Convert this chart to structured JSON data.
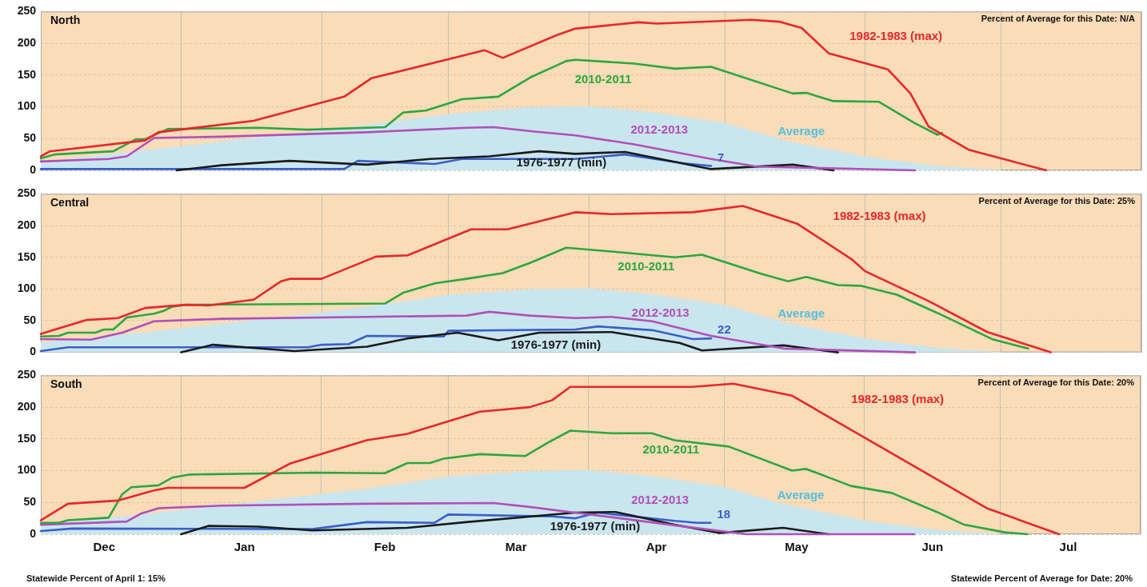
{
  "chart_data": [
    {
      "type": "line",
      "title": "North",
      "annotations": [
        "Percent of Average for this Date: N/A"
      ],
      "xlim": [
        "2013-12-01",
        "2014-08-01"
      ],
      "xticks": [
        {
          "value": "2013-12-01",
          "label": null
        },
        {
          "value": "2014-01-01",
          "label": null
        },
        {
          "value": "2014-02-01",
          "label": null
        },
        {
          "value": "2014-03-01",
          "label": null
        },
        {
          "value": "2014-04-01",
          "label": null
        },
        {
          "value": "2014-05-01",
          "label": null
        },
        {
          "value": "2014-06-01",
          "label": null
        },
        {
          "value": "2014-07-01",
          "label": null
        },
        {
          "value": "2014-08-01",
          "label": null
        }
      ],
      "ylim": [
        0,
        250
      ],
      "yticks": [
        0,
        50,
        100,
        150,
        200,
        250
      ],
      "grid": true,
      "legend": false,
      "tick_labels": "y",
      "marker": "none",
      "line_style": "solid",
      "series": [
        {
          "name": "Average",
          "type": "area",
          "color": "#c9e6ef",
          "x": [
            "2013-12-01",
            "2013-12-24",
            "2014-01-18",
            "2014-02-11",
            "2014-03-01",
            "2014-03-20",
            "2014-04-01",
            "2014-04-15",
            "2014-05-01",
            "2014-05-14",
            "2014-06-01",
            "2014-06-17",
            "2014-07-01"
          ],
          "values": [
            13,
            31,
            51,
            71,
            88,
            99,
            100,
            91,
            74,
            47,
            21,
            6,
            0
          ]
        },
        {
          "name": "1982-1983 (max)",
          "color": "#e8262a",
          "x": [
            "2013-12-01",
            "2013-12-03",
            "2013-12-24",
            "2013-12-27",
            "2014-01-17",
            "2014-02-06",
            "2014-02-12",
            "2014-03-09",
            "2014-03-13",
            "2014-03-25",
            "2014-03-29",
            "2014-04-12",
            "2014-04-16",
            "2014-05-07",
            "2014-05-13",
            "2014-05-18",
            "2014-05-24",
            "2014-06-06",
            "2014-06-11",
            "2014-06-15",
            "2014-06-24",
            "2014-07-03",
            "2014-07-11"
          ],
          "values": [
            22,
            30,
            47,
            60,
            78,
            116,
            145,
            189,
            177,
            213,
            223,
            233,
            231,
            237,
            234,
            224,
            184,
            159,
            121,
            69,
            32,
            15,
            0
          ]
        },
        {
          "name": "2010-2011",
          "color": "#2ca642",
          "x": [
            "2013-12-01",
            "2013-12-04",
            "2013-12-17",
            "2013-12-22",
            "2013-12-24",
            "2013-12-29",
            "2014-01-18",
            "2014-01-29",
            "2014-02-15",
            "2014-02-19",
            "2014-02-24",
            "2014-03-04",
            "2014-03-12",
            "2014-03-19",
            "2014-03-27",
            "2014-03-29",
            "2014-04-11",
            "2014-04-20",
            "2014-04-28",
            "2014-05-16",
            "2014-05-19",
            "2014-05-25",
            "2014-06-04",
            "2014-06-12",
            "2014-06-17",
            "2014-06-18"
          ],
          "values": [
            19,
            25,
            30,
            49,
            49,
            65,
            67,
            64,
            68,
            91,
            94,
            112,
            116,
            146,
            172,
            174,
            168,
            160,
            163,
            121,
            122,
            109,
            108,
            74,
            56,
            59
          ]
        },
        {
          "name": "2012-2013",
          "color": "#b150b8",
          "x": [
            "2013-12-01",
            "2013-12-16",
            "2013-12-20",
            "2013-12-26",
            "2014-01-10",
            "2014-02-11",
            "2014-03-05",
            "2014-03-11",
            "2014-03-20",
            "2014-03-29",
            "2014-04-11",
            "2014-04-28",
            "2014-05-08",
            "2014-06-12"
          ],
          "values": [
            14,
            18,
            22,
            51,
            53,
            60,
            67,
            68,
            61,
            55,
            41,
            18,
            6,
            0
          ]
        },
        {
          "name": "1976-1977 (min)",
          "color": "#1a1a1a",
          "x": [
            "2013-12-31",
            "2014-01-10",
            "2014-01-25",
            "2014-02-11",
            "2014-02-25",
            "2014-03-10",
            "2014-03-21",
            "2014-03-29",
            "2014-04-09",
            "2014-04-28",
            "2014-05-16",
            "2014-05-25"
          ],
          "values": [
            0,
            8,
            15,
            9,
            18,
            22,
            30,
            26,
            29,
            2,
            9,
            0
          ]
        },
        {
          "color": "#3a5fc8",
          "x": [
            "2013-12-01",
            "2014-02-06",
            "2014-02-09",
            "2014-02-26",
            "2014-03-04",
            "2014-03-29",
            "2014-04-09",
            "2014-04-22",
            "2014-04-28"
          ],
          "values": [
            2,
            2,
            15,
            10,
            18,
            18,
            25,
            11,
            7
          ],
          "value_labels": [
            null,
            null,
            null,
            null,
            null,
            null,
            null,
            null,
            "7"
          ]
        }
      ]
    },
    {
      "type": "line",
      "title": "Central",
      "annotations": [
        "Percent of Average for this Date: 25%"
      ],
      "xlim": [
        "2013-12-01",
        "2014-08-01"
      ],
      "xticks": [
        {
          "value": "2013-12-01",
          "label": null
        },
        {
          "value": "2014-01-01",
          "label": null
        },
        {
          "value": "2014-02-01",
          "label": null
        },
        {
          "value": "2014-03-01",
          "label": null
        },
        {
          "value": "2014-04-01",
          "label": null
        },
        {
          "value": "2014-05-01",
          "label": null
        },
        {
          "value": "2014-06-01",
          "label": null
        },
        {
          "value": "2014-07-01",
          "label": null
        },
        {
          "value": "2014-08-01",
          "label": null
        }
      ],
      "ylim": [
        0,
        250
      ],
      "yticks": [
        0,
        50,
        100,
        150,
        200,
        250
      ],
      "grid": true,
      "legend": false,
      "tick_labels": "y",
      "marker": "none",
      "line_style": "solid",
      "series": [
        {
          "name": "Average",
          "type": "area",
          "color": "#c9e6ef",
          "x": [
            "2013-12-01",
            "2013-12-24",
            "2014-01-18",
            "2014-02-11",
            "2014-03-01",
            "2014-03-20",
            "2014-04-01",
            "2014-04-15",
            "2014-05-01",
            "2014-05-14",
            "2014-06-01",
            "2014-06-17",
            "2014-07-01"
          ],
          "values": [
            15,
            31,
            51,
            71,
            90,
            99,
            100,
            91,
            74,
            47,
            21,
            6,
            0
          ]
        },
        {
          "name": "1982-1983 (max)",
          "color": "#e8262a",
          "x": [
            "2013-12-01",
            "2013-12-11",
            "2013-12-18",
            "2013-12-24",
            "2014-01-02",
            "2014-01-07",
            "2014-01-17",
            "2014-01-23",
            "2014-01-25",
            "2014-02-01",
            "2014-02-13",
            "2014-02-20",
            "2014-03-06",
            "2014-03-14",
            "2014-03-29",
            "2014-04-06",
            "2014-04-24",
            "2014-05-05",
            "2014-05-17",
            "2014-05-29",
            "2014-06-01",
            "2014-06-15",
            "2014-06-28",
            "2014-07-12"
          ],
          "values": [
            29,
            51,
            54,
            70,
            75,
            74,
            83,
            112,
            116,
            116,
            151,
            153,
            194,
            194,
            221,
            218,
            221,
            231,
            203,
            147,
            128,
            81,
            32,
            0
          ]
        },
        {
          "name": "2010-2011",
          "color": "#2ca642",
          "x": [
            "2013-12-01",
            "2013-12-05",
            "2013-12-07",
            "2013-12-13",
            "2013-12-15",
            "2013-12-17",
            "2013-12-20",
            "2013-12-26",
            "2013-12-28",
            "2013-12-30",
            "2014-01-02",
            "2014-02-15",
            "2014-02-19",
            "2014-02-26",
            "2014-03-05",
            "2014-03-13",
            "2014-03-19",
            "2014-03-27",
            "2014-04-06",
            "2014-04-20",
            "2014-04-26",
            "2014-05-09",
            "2014-05-15",
            "2014-05-19",
            "2014-05-26",
            "2014-05-31",
            "2014-06-08",
            "2014-06-17",
            "2014-06-29",
            "2014-07-07"
          ],
          "values": [
            25,
            26,
            31,
            31,
            36,
            36,
            55,
            61,
            65,
            72,
            75,
            77,
            94,
            109,
            116,
            125,
            141,
            165,
            159,
            150,
            154,
            124,
            112,
            119,
            106,
            105,
            91,
            62,
            21,
            6
          ]
        },
        {
          "name": "2012-2013",
          "color": "#b150b8",
          "x": [
            "2013-12-01",
            "2013-12-12",
            "2013-12-19",
            "2013-12-26",
            "2014-01-10",
            "2014-02-11",
            "2014-03-05",
            "2014-03-10",
            "2014-03-19",
            "2014-03-29",
            "2014-04-06",
            "2014-04-15",
            "2014-04-28",
            "2014-05-14",
            "2014-06-12"
          ],
          "values": [
            21,
            20,
            31,
            49,
            53,
            56,
            58,
            64,
            58,
            54,
            56,
            49,
            26,
            6,
            0
          ]
        },
        {
          "name": "1976-1977 (min)",
          "color": "#1a1a1a",
          "x": [
            "2014-01-01",
            "2014-01-08",
            "2014-01-26",
            "2014-02-11",
            "2014-02-20",
            "2014-03-03",
            "2014-03-12",
            "2014-03-21",
            "2014-04-06",
            "2014-04-21",
            "2014-04-26",
            "2014-05-14",
            "2014-05-26"
          ],
          "values": [
            0,
            12,
            2,
            9,
            22,
            31,
            19,
            31,
            32,
            15,
            3,
            11,
            0
          ]
        },
        {
          "color": "#3a5fc8",
          "x": [
            "2013-12-01",
            "2013-12-07",
            "2014-01-29",
            "2014-02-01",
            "2014-02-07",
            "2014-02-11",
            "2014-02-28",
            "2014-03-01",
            "2014-03-29",
            "2014-04-03",
            "2014-04-15",
            "2014-04-24",
            "2014-04-28"
          ],
          "values": [
            2,
            8,
            8,
            12,
            13,
            26,
            25,
            34,
            36,
            41,
            35,
            21,
            22
          ],
          "value_labels": [
            null,
            null,
            null,
            null,
            null,
            null,
            null,
            null,
            null,
            null,
            null,
            null,
            "22"
          ]
        }
      ]
    },
    {
      "type": "line",
      "title": "South",
      "annotations": [
        "Percent of Average for this Date: 20%",
        "Statewide Percent of April 1: 15%",
        "Statewide Percent of Average for Date: 20%"
      ],
      "xlim": [
        "2013-12-01",
        "2014-08-01"
      ],
      "xticks": [
        {
          "value": "2013-12-01",
          "label": null
        },
        {
          "value": "2013-12-15",
          "label": "Dec"
        },
        {
          "value": "2014-01-01",
          "label": null
        },
        {
          "value": "2014-01-15",
          "label": "Jan"
        },
        {
          "value": "2014-02-01",
          "label": null
        },
        {
          "value": "2014-02-15",
          "label": "Feb"
        },
        {
          "value": "2014-03-01",
          "label": null
        },
        {
          "value": "2014-03-16",
          "label": "Mar"
        },
        {
          "value": "2014-04-01",
          "label": null
        },
        {
          "value": "2014-04-16",
          "label": "Apr"
        },
        {
          "value": "2014-05-01",
          "label": null
        },
        {
          "value": "2014-05-17",
          "label": "May"
        },
        {
          "value": "2014-06-01",
          "label": null
        },
        {
          "value": "2014-06-16",
          "label": "Jun"
        },
        {
          "value": "2014-07-01",
          "label": null
        },
        {
          "value": "2014-07-16",
          "label": "Jul"
        },
        {
          "value": "2014-08-01",
          "label": null
        }
      ],
      "ylim": [
        0,
        250
      ],
      "yticks": [
        0,
        50,
        100,
        150,
        200,
        250
      ],
      "grid": true,
      "legend": false,
      "marker": "none",
      "line_style": "solid",
      "series": [
        {
          "name": "Average",
          "type": "area",
          "color": "#c9e6ef",
          "x": [
            "2013-12-01",
            "2013-12-24",
            "2014-01-18",
            "2014-02-11",
            "2014-03-01",
            "2014-03-20",
            "2014-04-01",
            "2014-04-15",
            "2014-05-01",
            "2014-05-14",
            "2014-06-01",
            "2014-06-17",
            "2014-07-01"
          ],
          "values": [
            15,
            31,
            51,
            71,
            90,
            99,
            100,
            91,
            74,
            47,
            21,
            6,
            0
          ]
        },
        {
          "name": "1982-1983 (max)",
          "color": "#e8262a",
          "x": [
            "2013-12-01",
            "2013-12-07",
            "2013-12-18",
            "2013-12-26",
            "2013-12-29",
            "2014-01-15",
            "2014-01-25",
            "2014-02-11",
            "2014-02-20",
            "2014-03-08",
            "2014-03-19",
            "2014-03-24",
            "2014-03-28",
            "2014-04-24",
            "2014-05-03",
            "2014-05-16",
            "2014-06-28",
            "2014-07-14"
          ],
          "values": [
            22,
            48,
            53,
            69,
            73,
            73,
            111,
            148,
            158,
            193,
            200,
            211,
            232,
            232,
            237,
            218,
            41,
            0
          ]
        },
        {
          "name": "2010-2011",
          "color": "#2ca642",
          "x": [
            "2013-12-01",
            "2013-12-05",
            "2013-12-07",
            "2013-12-16",
            "2013-12-19",
            "2013-12-21",
            "2013-12-27",
            "2013-12-30",
            "2014-01-03",
            "2014-01-31",
            "2014-02-15",
            "2014-02-20",
            "2014-02-25",
            "2014-02-28",
            "2014-03-08",
            "2014-03-18",
            "2014-03-23",
            "2014-03-28",
            "2014-04-06",
            "2014-04-15",
            "2014-04-20",
            "2014-05-02",
            "2014-05-16",
            "2014-05-19",
            "2014-05-29",
            "2014-06-07",
            "2014-06-17",
            "2014-06-23",
            "2014-07-02",
            "2014-07-07"
          ],
          "values": [
            18,
            18,
            22,
            26,
            63,
            74,
            77,
            89,
            94,
            97,
            96,
            112,
            112,
            119,
            126,
            123,
            144,
            163,
            159,
            159,
            148,
            138,
            100,
            103,
            76,
            65,
            35,
            15,
            3,
            0
          ]
        },
        {
          "name": "2012-2013",
          "color": "#b150b8",
          "x": [
            "2013-12-01",
            "2013-12-20",
            "2013-12-23",
            "2013-12-27",
            "2014-01-10",
            "2014-02-11",
            "2014-03-11",
            "2014-03-19",
            "2014-03-29",
            "2014-04-07",
            "2014-04-20",
            "2014-05-06",
            "2014-06-12"
          ],
          "values": [
            15,
            20,
            32,
            41,
            45,
            48,
            49,
            43,
            34,
            26,
            14,
            0,
            0
          ]
        },
        {
          "name": "1976-1977 (min)",
          "color": "#1a1a1a",
          "x": [
            "2014-01-01",
            "2014-01-07",
            "2014-01-18",
            "2014-01-30",
            "2014-02-20",
            "2014-03-05",
            "2014-03-29",
            "2014-04-07",
            "2014-04-20",
            "2014-04-30",
            "2014-05-14",
            "2014-05-24"
          ],
          "values": [
            0,
            13,
            12,
            6,
            10,
            19,
            34,
            35,
            15,
            2,
            10,
            0
          ]
        },
        {
          "color": "#3a5fc8",
          "x": [
            "2013-12-01",
            "2013-12-08",
            "2014-01-30",
            "2014-02-11",
            "2014-02-26",
            "2014-03-01",
            "2014-03-24",
            "2014-03-29",
            "2014-04-03",
            "2014-04-20",
            "2014-04-25",
            "2014-04-28"
          ],
          "values": [
            5,
            9,
            8,
            19,
            18,
            31,
            28,
            25,
            34,
            21,
            18,
            18
          ],
          "value_labels": [
            null,
            null,
            null,
            null,
            null,
            null,
            null,
            null,
            null,
            null,
            null,
            "18"
          ]
        }
      ]
    }
  ]
}
